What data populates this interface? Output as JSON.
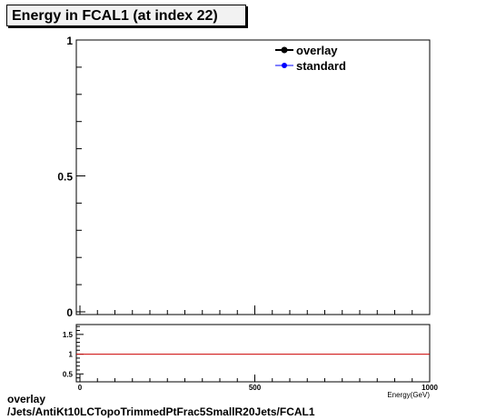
{
  "title": "Energy in FCAL1 (at index 22)",
  "footer": {
    "line1": "overlay",
    "line2": "/Jets/AntiKt10LCTopoTrimmedPtFrac5SmallR20Jets/FCAL1"
  },
  "chart_data": [
    {
      "type": "line",
      "title": "Energy in FCAL1 (at index 22)",
      "xlabel": "Energy(GeV)",
      "ylabel": "",
      "xlim": [
        0,
        1000
      ],
      "ylim": [
        0,
        1
      ],
      "y_ticks": [
        "0",
        "0.5",
        "1"
      ],
      "legend": {
        "placement": "top-right",
        "entries": [
          {
            "name": "overlay",
            "color": "#000000"
          },
          {
            "name": "standard",
            "color": "#0000ff"
          }
        ]
      },
      "series": [
        {
          "name": "overlay",
          "values": []
        },
        {
          "name": "standard",
          "values": []
        }
      ]
    },
    {
      "type": "line",
      "xlabel": "Energy(GeV)",
      "xlim": [
        0,
        1000
      ],
      "ylim": [
        0.3,
        1.75
      ],
      "x_ticks": [
        "0",
        "500",
        "1000"
      ],
      "y_ticks": [
        "0.5",
        "1",
        "1.5"
      ],
      "reference_line": {
        "y": 1,
        "color": "#cc0000"
      }
    }
  ]
}
